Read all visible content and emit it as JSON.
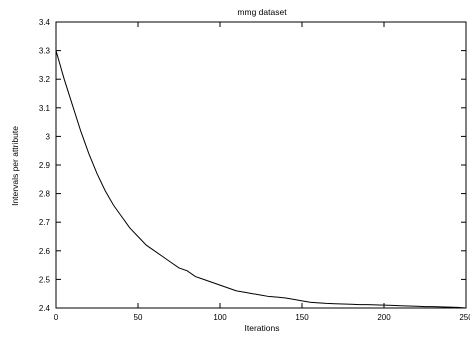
{
  "chart_data": {
    "type": "line",
    "title": "mmg dataset",
    "xlabel": "Iterations",
    "ylabel": "Intervals per attribute",
    "xlim": [
      0,
      250
    ],
    "ylim": [
      2.4,
      3.4
    ],
    "x_ticks": [
      "0",
      "50",
      "100",
      "150",
      "200",
      "250"
    ],
    "y_ticks": [
      "2.4",
      "2.5",
      "2.6",
      "2.7",
      "2.8",
      "2.9",
      "3",
      "3.1",
      "3.2",
      "3.3",
      "3.4"
    ],
    "grid": false,
    "legend": "none",
    "series": [
      {
        "color": "#000000",
        "x": [
          0,
          5,
          10,
          15,
          20,
          25,
          30,
          35,
          40,
          45,
          50,
          55,
          60,
          65,
          70,
          75,
          80,
          85,
          90,
          95,
          100,
          105,
          110,
          115,
          120,
          125,
          130,
          135,
          140,
          145,
          150,
          155,
          160,
          165,
          170,
          175,
          180,
          185,
          190,
          195,
          200,
          205,
          210,
          215,
          220,
          225,
          230,
          235,
          240,
          245,
          250
        ],
        "y": [
          3.3,
          3.2,
          3.11,
          3.02,
          2.94,
          2.87,
          2.81,
          2.76,
          2.72,
          2.68,
          2.65,
          2.62,
          2.6,
          2.58,
          2.56,
          2.54,
          2.53,
          2.51,
          2.5,
          2.49,
          2.48,
          2.47,
          2.46,
          2.455,
          2.45,
          2.445,
          2.44,
          2.438,
          2.435,
          2.43,
          2.425,
          2.42,
          2.418,
          2.416,
          2.415,
          2.414,
          2.413,
          2.412,
          2.412,
          2.411,
          2.41,
          2.409,
          2.408,
          2.407,
          2.406,
          2.405,
          2.405,
          2.404,
          2.403,
          2.402,
          2.4
        ]
      }
    ]
  }
}
